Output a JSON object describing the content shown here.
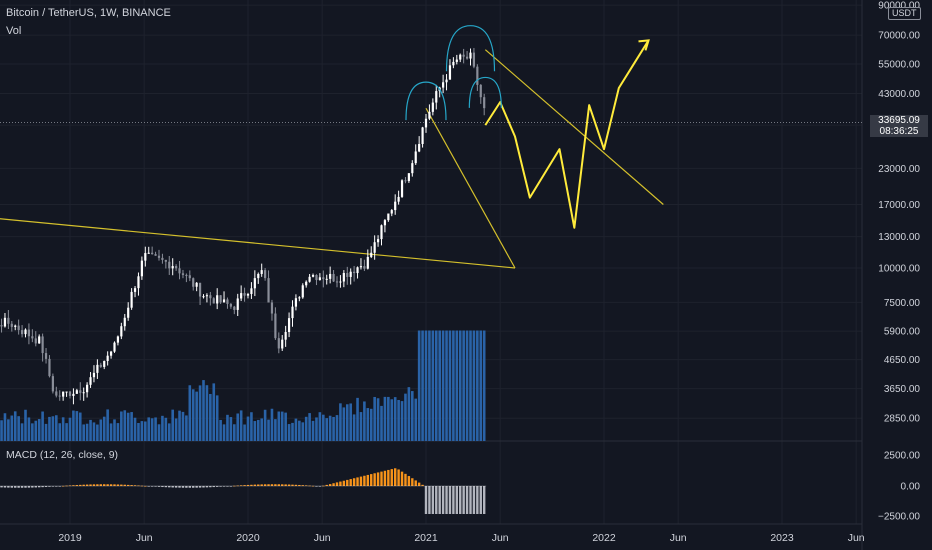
{
  "header": {
    "symbol": "Bitcoin / TetherUS, 1W, BINANCE",
    "volume_label": "Vol",
    "quote_currency": "USDT"
  },
  "price_axis": {
    "labels": [
      "90000.00",
      "70000.00",
      "55000.00",
      "43000.00",
      "33000.00",
      "23000.00",
      "17000.00",
      "13000.00",
      "10000.00",
      "7500.00",
      "5900.00",
      "4650.00",
      "3650.00",
      "2850.00"
    ],
    "current_price": "33695.09",
    "countdown": "08:36:25"
  },
  "macd": {
    "label": "MACD (12, 26, close, 9)",
    "axis_labels": [
      "2500.00",
      "0.00",
      "−2500.00"
    ]
  },
  "time_axis": {
    "labels": [
      "2019",
      "Jun",
      "2020",
      "Jun",
      "2021",
      "Jun",
      "2022",
      "Jun",
      "2023",
      "Jun"
    ]
  },
  "colors": {
    "background": "#131722",
    "up_candle": "#ffffff",
    "down_candle": "#8a8e99",
    "volume": "#2a63a8",
    "macd_positive": "#f7931a",
    "macd_negative": "#b2b5be",
    "trendline": "#d4c02c",
    "projection": "#ffeb3b",
    "arc": "#26a6c8"
  },
  "chart_data": {
    "type": "candlestick",
    "title": "Bitcoin / TetherUS, 1W, BINANCE",
    "scale": "log",
    "ylim": [
      2500,
      90000
    ],
    "x_range": [
      "2018-06",
      "2023-09"
    ],
    "anchors": [
      {
        "date": "2018-06",
        "close": 6400
      },
      {
        "date": "2018-09",
        "close": 6300
      },
      {
        "date": "2018-11",
        "close": 5400
      },
      {
        "date": "2018-12",
        "close": 3400
      },
      {
        "date": "2019-02",
        "close": 3700
      },
      {
        "date": "2019-04",
        "close": 5200
      },
      {
        "date": "2019-06",
        "close": 11000
      },
      {
        "date": "2019-08",
        "close": 10300
      },
      {
        "date": "2019-10",
        "close": 8000
      },
      {
        "date": "2019-12",
        "close": 7200
      },
      {
        "date": "2020-02",
        "close": 9800
      },
      {
        "date": "2020-03",
        "close": 5200
      },
      {
        "date": "2020-05",
        "close": 9500
      },
      {
        "date": "2020-07",
        "close": 9200
      },
      {
        "date": "2020-09",
        "close": 10500
      },
      {
        "date": "2020-11",
        "close": 18000
      },
      {
        "date": "2020-12",
        "close": 24000
      },
      {
        "date": "2021-01",
        "close": 35000
      },
      {
        "date": "2021-02",
        "close": 46000
      },
      {
        "date": "2021-03",
        "close": 57000
      },
      {
        "date": "2021-04",
        "close": 58000
      },
      {
        "date": "2021-05",
        "close": 36000
      }
    ],
    "volume_relative": "low in 2018-2019, spikes around 2020-03, rising into 2021, largest bar in 2021-05",
    "macd_relative": "flat near zero until late 2020, positive peak about 1800 in early 2021, turning sharply negative to about -2800 in 2021-05",
    "trendlines": [
      {
        "from": {
          "date": "2018-06",
          "price": 15500
        },
        "to": {
          "date": "2021-07",
          "price": 10000
        }
      },
      {
        "from": {
          "date": "2021-01",
          "price": 38000
        },
        "to": {
          "date": "2021-07",
          "price": 10000
        }
      },
      {
        "from": {
          "date": "2021-05",
          "price": 62000
        },
        "to": {
          "date": "2022-05",
          "price": 17000
        }
      }
    ],
    "projection_path": [
      {
        "date": "2021-05",
        "price": 33000
      },
      {
        "date": "2021-06",
        "price": 40000
      },
      {
        "date": "2021-07",
        "price": 30000
      },
      {
        "date": "2021-08",
        "price": 18000
      },
      {
        "date": "2021-10",
        "price": 27000
      },
      {
        "date": "2021-11",
        "price": 14000
      },
      {
        "date": "2021-12",
        "price": 39000
      },
      {
        "date": "2022-01",
        "price": 27000
      },
      {
        "date": "2022-02",
        "price": 45000
      },
      {
        "date": "2022-04",
        "price": 67000
      }
    ],
    "arcs": [
      {
        "center": {
          "date": "2021-01",
          "price": 40000
        },
        "label": "left shoulder"
      },
      {
        "center": {
          "date": "2021-04",
          "price": 62000
        },
        "label": "head"
      },
      {
        "center": {
          "date": "2021-05",
          "price": 43000
        },
        "label": "right shoulder"
      }
    ]
  }
}
